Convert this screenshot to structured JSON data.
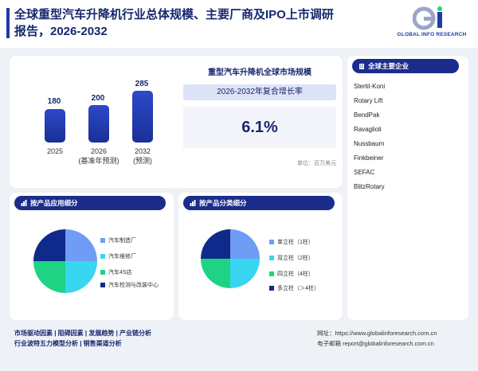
{
  "header": {
    "title_line1": "全球重型汽车升降机行业总体规模、主要厂商及IPO上市调研",
    "title_line2": "报告，2026-2032",
    "logo_text": "GLOBAL INFO RESEARCH",
    "logo_mark": "GI"
  },
  "market": {
    "bars": [
      {
        "value": "180",
        "year": "2025",
        "note": ""
      },
      {
        "value": "200",
        "year": "2026",
        "note": "(基准年预测)"
      },
      {
        "value": "285",
        "year": "2032",
        "note": "(预测)"
      }
    ],
    "title": "重型汽车升降机全球市场规模",
    "cagr_label": "2026-2032年复合增长率",
    "cagr_value": "6.1%",
    "unit": "单位：百万美元"
  },
  "companies": {
    "heading": "全球主要企业",
    "items": [
      "Stertil-Koni",
      "Rotary Lift",
      "BendPak",
      "Ravaglioli",
      "Nussbaum",
      "Finkbeiner",
      "SEFAC",
      "BlitzRotary"
    ]
  },
  "application": {
    "heading": "按产品应用细分",
    "legend": [
      "汽车制造厂",
      "汽车维修厂",
      "汽车4S店",
      "汽车检测与改装中心"
    ]
  },
  "category": {
    "heading": "按产品分类细分",
    "legend": [
      "单立柱（1柱）",
      "双立柱（2柱）",
      "四立柱（4柱）",
      "多立柱（＞4柱）"
    ]
  },
  "colors": {
    "c1": "#6f9cf5",
    "c2": "#38d6f0",
    "c3": "#1fd384",
    "c4": "#0f2a8a"
  },
  "footer": {
    "links_line1": "市场驱动因素 | 阻碍因素 | 发展趋势 | 产业链分析",
    "links_line2": "行业波特五力模型分析 | 销售渠道分析",
    "website": "网址：https://www.globalinforesearch.com.cn",
    "email": "电子邮箱 report@globalinforesearch.com.cn"
  }
}
